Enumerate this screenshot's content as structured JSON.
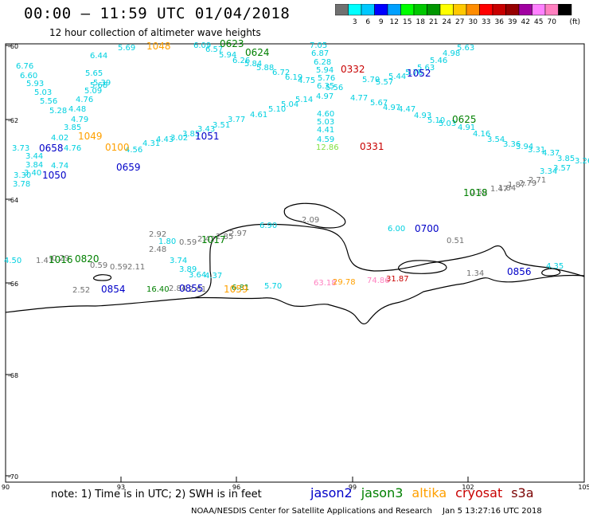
{
  "header": {
    "title": "00:00 – 11:59 UTC 01/04/2018",
    "subtitle": "12 hour collection of altimeter wave heights"
  },
  "colorbar": {
    "unit": "(ft)",
    "colors": [
      "#707070",
      "#00ffff",
      "#00c8ff",
      "#0000ff",
      "#00a0ff",
      "#00ff00",
      "#00c800",
      "#009600",
      "#ffff00",
      "#ffc800",
      "#ff8c00",
      "#ff0000",
      "#c80000",
      "#960000",
      "#a000a0",
      "#ff80ff",
      "#ff80c0",
      "#000000"
    ],
    "labels": [
      "3",
      "6",
      "9",
      "12",
      "15",
      "18",
      "21",
      "24",
      "27",
      "30",
      "33",
      "36",
      "39",
      "42",
      "45",
      "70"
    ]
  },
  "axes": {
    "x_ticks": [
      "90",
      "93",
      "96",
      "99",
      "102",
      "105"
    ],
    "y_ticks": [
      "-60",
      "-62",
      "-64",
      "-66",
      "-68",
      "-70"
    ]
  },
  "colors": {
    "jason2": "#0000c8",
    "jason3": "#008000",
    "altika": "#ffa000",
    "cryosat": "#c80000",
    "s3a": "#7a0000",
    "coast": "#000000",
    "cyan_value": "#00d0e0",
    "green_value": "#008000",
    "gray_value": "#707070"
  },
  "times": [
    {
      "label": "1048",
      "color": "#ffa000"
    },
    {
      "label": "0623",
      "color": "#008000"
    },
    {
      "label": "0624",
      "color": "#008000"
    },
    {
      "label": "0332",
      "color": "#c80000"
    },
    {
      "label": "1052",
      "color": "#0000c8"
    },
    {
      "label": "0625",
      "color": "#008000"
    },
    {
      "label": "1049",
      "color": "#ffa000"
    },
    {
      "label": "0658",
      "color": "#0000c8"
    },
    {
      "label": "0100",
      "color": "#ffa000"
    },
    {
      "label": "1051",
      "color": "#0000c8"
    },
    {
      "label": "0331",
      "color": "#c80000"
    },
    {
      "label": "0659",
      "color": "#0000c8"
    },
    {
      "label": "1050",
      "color": "#0000c8"
    },
    {
      "label": "1018",
      "color": "#008000"
    },
    {
      "label": "1017",
      "color": "#008000"
    },
    {
      "label": "0700",
      "color": "#0000c8"
    },
    {
      "label": "0820",
      "color": "#008000"
    },
    {
      "label": "1016",
      "color": "#008000"
    },
    {
      "label": "0854",
      "color": "#0000c8"
    },
    {
      "label": "0855",
      "color": "#0000c8"
    },
    {
      "label": "1059",
      "color": "#ffa000"
    },
    {
      "label": "0856",
      "color": "#0000c8"
    }
  ],
  "values": [
    {
      "v": "5.69",
      "c": "#00d0e0"
    },
    {
      "v": "6.44",
      "c": "#00d0e0"
    },
    {
      "v": "6.09",
      "c": "#00d0e0"
    },
    {
      "v": "6.57",
      "c": "#00d0e0"
    },
    {
      "v": "5.94",
      "c": "#00d0e0"
    },
    {
      "v": "6.26",
      "c": "#00d0e0"
    },
    {
      "v": "5.84",
      "c": "#00d0e0"
    },
    {
      "v": "5.88",
      "c": "#00d0e0"
    },
    {
      "v": "6.72",
      "c": "#00d0e0"
    },
    {
      "v": "6.19",
      "c": "#00d0e0"
    },
    {
      "v": "7.05",
      "c": "#00d0e0"
    },
    {
      "v": "6.87",
      "c": "#00d0e0"
    },
    {
      "v": "6.28",
      "c": "#00d0e0"
    },
    {
      "v": "5.94",
      "c": "#00d0e0"
    },
    {
      "v": "5.76",
      "c": "#00d0e0"
    },
    {
      "v": "4.75",
      "c": "#00d0e0"
    },
    {
      "v": "6.35",
      "c": "#00d0e0"
    },
    {
      "v": "5.56",
      "c": "#00d0e0"
    },
    {
      "v": "5.70",
      "c": "#00d0e0"
    },
    {
      "v": "5.57",
      "c": "#00d0e0"
    },
    {
      "v": "5.44",
      "c": "#00d0e0"
    },
    {
      "v": "5.76",
      "c": "#00d0e0"
    },
    {
      "v": "5.63",
      "c": "#00d0e0"
    },
    {
      "v": "5.46",
      "c": "#00d0e0"
    },
    {
      "v": "4.98",
      "c": "#00d0e0"
    },
    {
      "v": "5.63",
      "c": "#00d0e0"
    },
    {
      "v": "6.76",
      "c": "#00d0e0"
    },
    {
      "v": "6.60",
      "c": "#00d0e0"
    },
    {
      "v": "5.93",
      "c": "#00d0e0"
    },
    {
      "v": "5.03",
      "c": "#00d0e0"
    },
    {
      "v": "5.56",
      "c": "#00d0e0"
    },
    {
      "v": "5.28",
      "c": "#00d0e0"
    },
    {
      "v": "5.65",
      "c": "#00d0e0"
    },
    {
      "v": "5.68",
      "c": "#00d0e0"
    },
    {
      "v": "5.39",
      "c": "#00d0e0"
    },
    {
      "v": "5.09",
      "c": "#00d0e0"
    },
    {
      "v": "4.76",
      "c": "#00d0e0"
    },
    {
      "v": "4.48",
      "c": "#00d0e0"
    },
    {
      "v": "4.79",
      "c": "#00d0e0"
    },
    {
      "v": "3.85",
      "c": "#00d0e0"
    },
    {
      "v": "4.02",
      "c": "#00d0e0"
    },
    {
      "v": "3.73",
      "c": "#00d0e0"
    },
    {
      "v": "4.76",
      "c": "#00d0e0"
    },
    {
      "v": "3.44",
      "c": "#00d0e0"
    },
    {
      "v": "3.84",
      "c": "#00d0e0"
    },
    {
      "v": "3.30",
      "c": "#00d0e0"
    },
    {
      "v": "3.78",
      "c": "#00d0e0"
    },
    {
      "v": "3.40",
      "c": "#00d0e0"
    },
    {
      "v": "4.74",
      "c": "#00d0e0"
    },
    {
      "v": "4.56",
      "c": "#00d0e0"
    },
    {
      "v": "4.31",
      "c": "#00d0e0"
    },
    {
      "v": "4.43",
      "c": "#00d0e0"
    },
    {
      "v": "3.02",
      "c": "#00d0e0"
    },
    {
      "v": "3.85",
      "c": "#00d0e0"
    },
    {
      "v": "3.43",
      "c": "#00d0e0"
    },
    {
      "v": "3.51",
      "c": "#00d0e0"
    },
    {
      "v": "3.77",
      "c": "#00d0e0"
    },
    {
      "v": "4.61",
      "c": "#00d0e0"
    },
    {
      "v": "5.10",
      "c": "#00d0e0"
    },
    {
      "v": "5.04",
      "c": "#00d0e0"
    },
    {
      "v": "5.14",
      "c": "#00d0e0"
    },
    {
      "v": "4.97",
      "c": "#00d0e0"
    },
    {
      "v": "4.60",
      "c": "#00d0e0"
    },
    {
      "v": "5.03",
      "c": "#00d0e0"
    },
    {
      "v": "4.41",
      "c": "#00d0e0"
    },
    {
      "v": "4.59",
      "c": "#00d0e0"
    },
    {
      "v": "12.86",
      "c": "#80e040"
    },
    {
      "v": "4.77",
      "c": "#00d0e0"
    },
    {
      "v": "5.67",
      "c": "#00d0e0"
    },
    {
      "v": "4.97",
      "c": "#00d0e0"
    },
    {
      "v": "4.47",
      "c": "#00d0e0"
    },
    {
      "v": "4.93",
      "c": "#00d0e0"
    },
    {
      "v": "5.10",
      "c": "#00d0e0"
    },
    {
      "v": "5.03",
      "c": "#00d0e0"
    },
    {
      "v": "4.91",
      "c": "#00d0e0"
    },
    {
      "v": "4.16",
      "c": "#00d0e0"
    },
    {
      "v": "3.54",
      "c": "#00d0e0"
    },
    {
      "v": "3.36",
      "c": "#00d0e0"
    },
    {
      "v": "3.94",
      "c": "#00d0e0"
    },
    {
      "v": "3.31",
      "c": "#00d0e0"
    },
    {
      "v": "4.37",
      "c": "#00d0e0"
    },
    {
      "v": "3.85",
      "c": "#00d0e0"
    },
    {
      "v": "3.26",
      "c": "#00d0e0"
    },
    {
      "v": "3.57",
      "c": "#00d0e0"
    },
    {
      "v": "3.34",
      "c": "#00d0e0"
    },
    {
      "v": "2.71",
      "c": "#707070"
    },
    {
      "v": "2.79",
      "c": "#707070"
    },
    {
      "v": "1.87",
      "c": "#707070"
    },
    {
      "v": "1.84",
      "c": "#707070"
    },
    {
      "v": "1.47",
      "c": "#707070"
    },
    {
      "v": "0.59",
      "c": "#707070"
    },
    {
      "v": "2.09",
      "c": "#707070"
    },
    {
      "v": "6.90",
      "c": "#00d0e0"
    },
    {
      "v": "6.00",
      "c": "#00d0e0"
    },
    {
      "v": "0.51",
      "c": "#707070"
    },
    {
      "v": "2.92",
      "c": "#707070"
    },
    {
      "v": "1.80",
      "c": "#00d0e0"
    },
    {
      "v": "0.59",
      "c": "#707070"
    },
    {
      "v": "2.42",
      "c": "#707070"
    },
    {
      "v": "2.85",
      "c": "#707070"
    },
    {
      "v": "2.97",
      "c": "#707070"
    },
    {
      "v": "2.48",
      "c": "#707070"
    },
    {
      "v": "3.74",
      "c": "#00d0e0"
    },
    {
      "v": "3.89",
      "c": "#00d0e0"
    },
    {
      "v": "3.64",
      "c": "#00d0e0"
    },
    {
      "v": "4.37",
      "c": "#00d0e0"
    },
    {
      "v": "4.50",
      "c": "#00d0e0"
    },
    {
      "v": "1.41",
      "c": "#707070"
    },
    {
      "v": "0.29",
      "c": "#707070"
    },
    {
      "v": "0.59",
      "c": "#707070"
    },
    {
      "v": "0.59",
      "c": "#707070"
    },
    {
      "v": "2.11",
      "c": "#707070"
    },
    {
      "v": "2.52",
      "c": "#707070"
    },
    {
      "v": "16.40",
      "c": "#008000"
    },
    {
      "v": "2.84",
      "c": "#707070"
    },
    {
      "v": "2.61",
      "c": "#707070"
    },
    {
      "v": "6.81",
      "c": "#008000"
    },
    {
      "v": "5.70",
      "c": "#00d0e0"
    },
    {
      "v": "63.18",
      "c": "#ff80c0"
    },
    {
      "v": "29.78",
      "c": "#ffa000"
    },
    {
      "v": "74.86",
      "c": "#ff80c0"
    },
    {
      "v": "31.87",
      "c": "#c80000"
    },
    {
      "v": "1.34",
      "c": "#707070"
    },
    {
      "v": "4.35",
      "c": "#00d0e0"
    }
  ],
  "footer": {
    "note": "note:  1) Time is in UTC;  2) SWH is in feet",
    "legend": [
      {
        "name": "jason2",
        "color": "#0000c8"
      },
      {
        "name": "jason3",
        "color": "#008000"
      },
      {
        "name": "altika",
        "color": "#ffa000"
      },
      {
        "name": "cryosat",
        "color": "#c80000"
      },
      {
        "name": "s3a",
        "color": "#7a0000"
      }
    ],
    "credit": "NOAA/NESDIS Center for Satellite Applications and Research",
    "timestamp": "Jan  5 13:27:16 UTC 2018"
  }
}
